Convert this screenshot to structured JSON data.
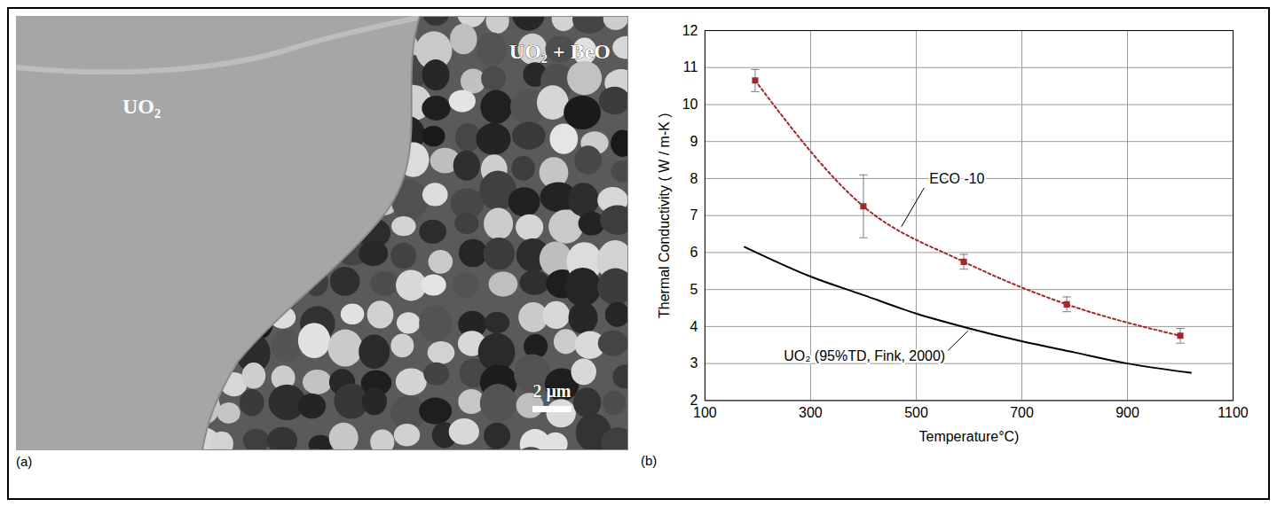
{
  "micrograph": {
    "panel_label": "(a)",
    "labels": [
      "UO₂",
      "UO₂ + BeO"
    ],
    "scale_bar": "2 μm"
  },
  "chart_data": {
    "panel_label": "(b)",
    "type": "line",
    "x_label": "Temperature°C)",
    "y_label": "Thermal Conductivity ( W / m-K )",
    "xlim": [
      100,
      1100
    ],
    "xticks": [
      100,
      300,
      500,
      700,
      900,
      1100
    ],
    "ylim": [
      2,
      12
    ],
    "yticks": [
      2,
      3,
      4,
      5,
      6,
      7,
      8,
      9,
      10,
      11,
      12
    ],
    "grid": true,
    "series": [
      {
        "name": "ECO -10",
        "color": "#a0282a",
        "marker": "square",
        "line_style": "dotted",
        "x": [
          195,
          400,
          590,
          785,
          1000
        ],
        "values": [
          10.65,
          7.25,
          5.75,
          4.6,
          3.75
        ],
        "error": [
          0.3,
          0.85,
          0.2,
          0.2,
          0.2
        ]
      },
      {
        "name": "UO₂ (95%TD, Fink, 2000)",
        "color": "#000000",
        "marker": "none",
        "line_style": "solid",
        "x": [
          175,
          300,
          400,
          500,
          600,
          700,
          800,
          900,
          1020
        ],
        "values": [
          6.15,
          5.35,
          4.85,
          4.35,
          3.95,
          3.6,
          3.3,
          3.0,
          2.75
        ]
      }
    ]
  }
}
